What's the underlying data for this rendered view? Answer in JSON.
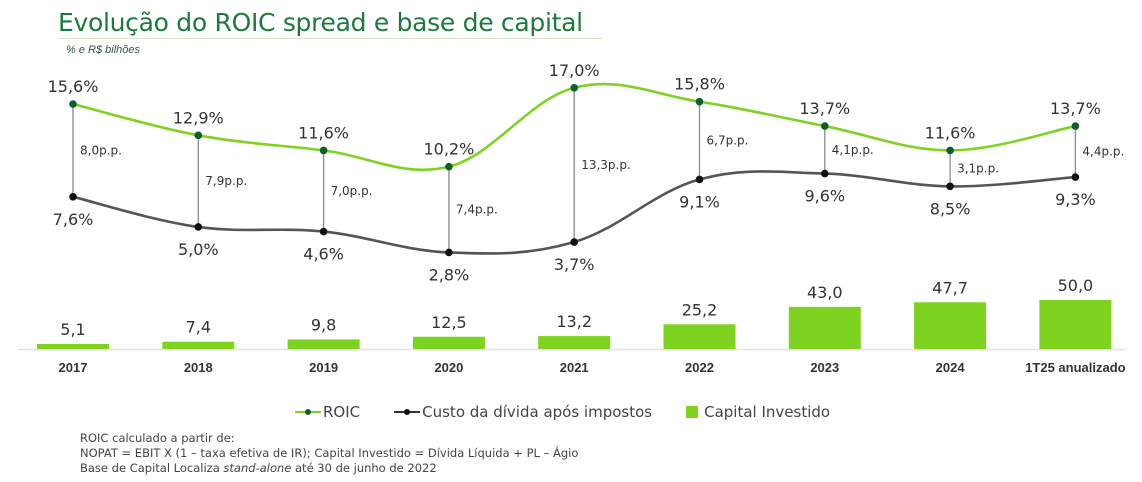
{
  "header": {
    "title": "Evolução do ROIC spread e base de capital",
    "subtitle": "% e R$ bilhões"
  },
  "colors": {
    "roic": "#7ed321",
    "roic_marker": "#0d5f2a",
    "cost": "#555555",
    "cost_marker": "#111111",
    "bar": "#7ed321",
    "title": "#1c7a3c"
  },
  "chart_data": {
    "type": "line+bar",
    "title": "Evolução do ROIC spread e base de capital",
    "subtitle": "% e R$ bilhões",
    "categories": [
      "2017",
      "2018",
      "2019",
      "2020",
      "2021",
      "2022",
      "2023",
      "2024",
      "1T25 anualizado"
    ],
    "series": [
      {
        "name": "ROIC",
        "type": "line",
        "unit": "%",
        "values": [
          15.6,
          12.9,
          11.6,
          10.2,
          17.0,
          15.8,
          13.7,
          11.6,
          13.7
        ],
        "labels": [
          "15,6%",
          "12,9%",
          "11,6%",
          "10,2%",
          "17,0%",
          "15,8%",
          "13,7%",
          "11,6%",
          "13,7%"
        ]
      },
      {
        "name": "Custo da dívida após impostos",
        "type": "line",
        "unit": "%",
        "values": [
          7.6,
          5.0,
          4.6,
          2.8,
          3.7,
          9.1,
          9.6,
          8.5,
          9.3
        ],
        "labels": [
          "7,6%",
          "5,0%",
          "4,6%",
          "2,8%",
          "3,7%",
          "9,1%",
          "9,6%",
          "8,5%",
          "9,3%"
        ]
      },
      {
        "name": "Capital Investido",
        "type": "bar",
        "unit": "R$ bilhões",
        "values": [
          5.1,
          7.4,
          9.8,
          12.5,
          13.2,
          25.2,
          43.0,
          47.7,
          50.0
        ],
        "labels": [
          "5,1",
          "7,4",
          "9,8",
          "12,5",
          "13,2",
          "25,2",
          "43,0",
          "47,7",
          "50,0"
        ]
      }
    ],
    "spread": {
      "values": [
        8.0,
        7.9,
        7.0,
        7.4,
        13.3,
        6.7,
        4.1,
        3.1,
        4.4
      ],
      "labels": [
        "8,0p.p.",
        "7,9p.p.",
        "7,0p.p.",
        "7,4p.p.",
        "13,3p.p.",
        "6,7p.p.",
        "4,1p.p.",
        "3,1p.p.",
        "4,4p.p."
      ]
    },
    "legend_position": "bottom-center",
    "grid": false
  },
  "legend": {
    "items": [
      {
        "label": "ROIC"
      },
      {
        "label": "Custo da dívida após impostos"
      },
      {
        "label": "Capital Investido"
      }
    ]
  },
  "notes": {
    "line1": "ROIC  calculado a partir de:",
    "line2": "NOPAT = EBIT X (1 – taxa efetiva de IR); Capital Investido = Dívida Líquida + PL – Ágio",
    "line3_pre": "Base de Capital Localiza ",
    "line3_italic": "stand-alone",
    "line3_post": " até 30 de junho de 2022"
  }
}
